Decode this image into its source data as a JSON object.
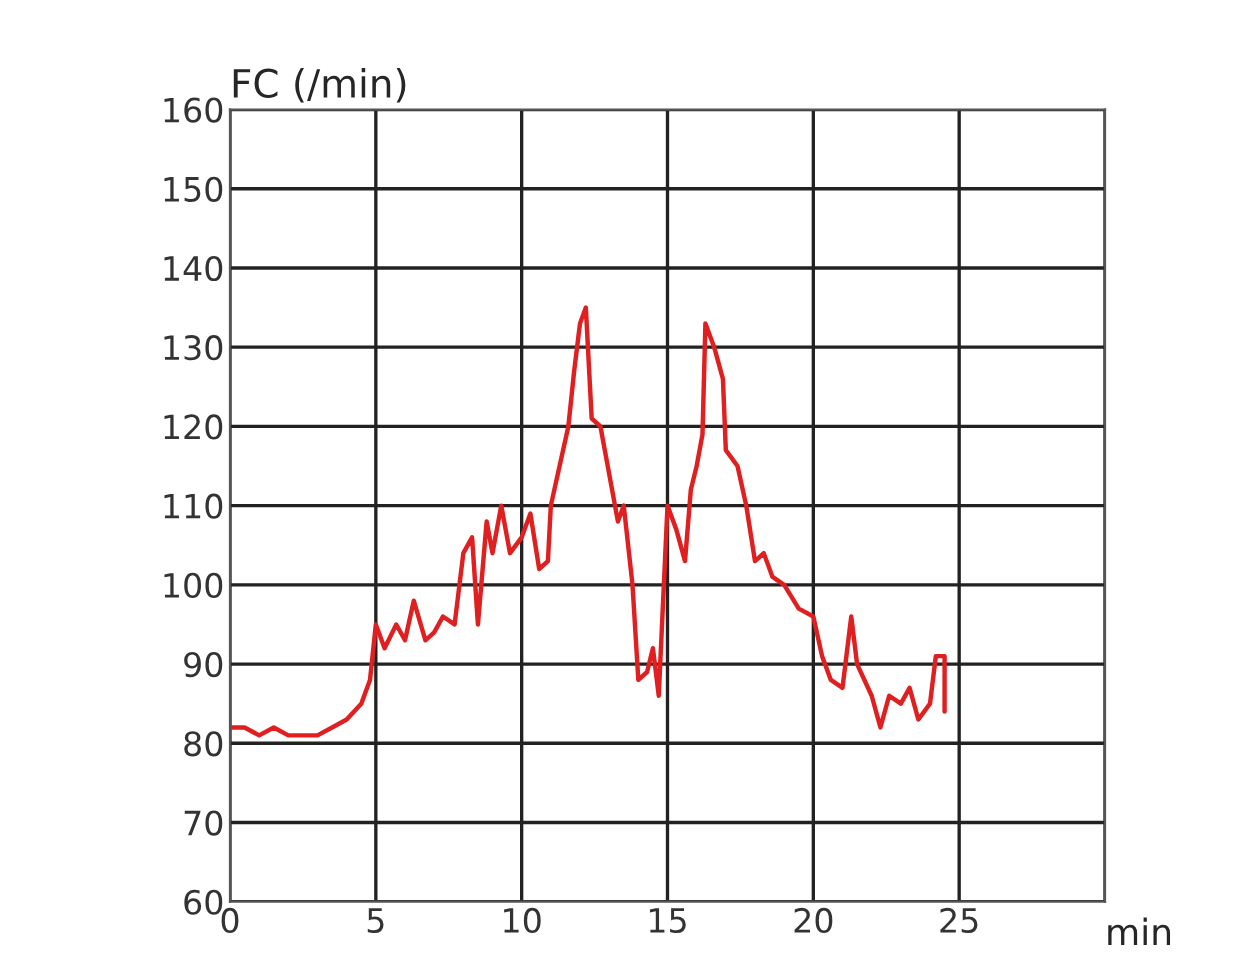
{
  "chart_data": {
    "type": "line",
    "ylabel": "FC (/min)",
    "xlabel": "min",
    "xlim": [
      0,
      30
    ],
    "xticks": [
      0,
      5,
      10,
      15,
      20,
      25,
      {
        "value": 30,
        "label": null
      }
    ],
    "ylim": [
      60,
      160
    ],
    "yticks": [
      60,
      70,
      80,
      90,
      100,
      110,
      120,
      130,
      140,
      150,
      160
    ],
    "grid": true,
    "marker": "none",
    "line_style": "solid",
    "series": [
      {
        "color": "#e02020",
        "x": [
          0,
          0.5,
          1,
          1.5,
          2,
          2.5,
          3,
          3.5,
          4,
          4.5,
          4.8,
          5,
          5.3,
          5.7,
          6,
          6.3,
          6.7,
          7,
          7.3,
          7.7,
          8,
          8.3,
          8.5,
          8.8,
          9,
          9.3,
          9.6,
          10,
          10.3,
          10.6,
          10.9,
          11,
          11.3,
          11.6,
          11.8,
          12,
          12.2,
          12.4,
          12.7,
          13,
          13.3,
          13.5,
          13.8,
          14,
          14.3,
          14.5,
          14.7,
          15,
          15.3,
          15.6,
          15.8,
          16,
          16.2,
          16.3,
          16.6,
          16.9,
          17,
          17.4,
          17.7,
          18,
          18.3,
          18.6,
          19,
          19.5,
          20,
          20.3,
          20.6,
          21,
          21.3,
          21.5,
          22,
          22.3,
          22.6,
          23,
          23.3,
          23.6,
          24,
          24.2,
          24.5,
          24.5
        ],
        "values": [
          82,
          82,
          81,
          82,
          81,
          81,
          81,
          82,
          83,
          85,
          88,
          95,
          92,
          95,
          93,
          98,
          93,
          94,
          96,
          95,
          104,
          106,
          95,
          108,
          104,
          110,
          104,
          106,
          109,
          102,
          103,
          110,
          115,
          120,
          127,
          133,
          135,
          121,
          120,
          114,
          108,
          110,
          100,
          88,
          89,
          92,
          86,
          110,
          107,
          103,
          112,
          115,
          119,
          133,
          130,
          126,
          117,
          115,
          110,
          103,
          104,
          101,
          100,
          97,
          96,
          91,
          88,
          87,
          96,
          90,
          86,
          82,
          86,
          85,
          87,
          83,
          85,
          91,
          91,
          84
        ]
      }
    ]
  }
}
